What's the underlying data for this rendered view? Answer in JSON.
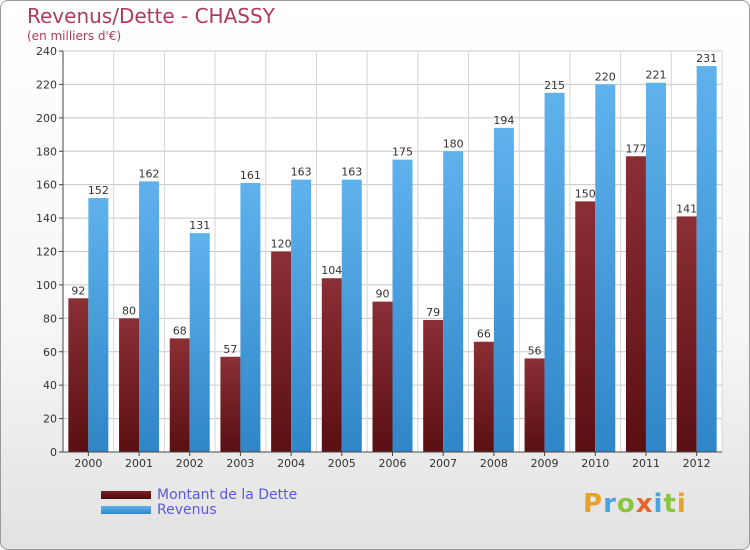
{
  "title": "Revenus/Dette - CHASSY",
  "subtitle": "(en milliers d'€)",
  "legend": {
    "debt_label": "Montant de la Dette",
    "revenue_label": "Revenus"
  },
  "logo_text": "Proxiti",
  "colors": {
    "debt": "#7a1f24",
    "revenue": "#4aa3e3",
    "title": "#b03a5c",
    "legend_text": "#5a5ae0"
  },
  "chart_data": {
    "type": "bar",
    "title": "Revenus/Dette - CHASSY",
    "subtitle": "(en milliers d'€)",
    "categories": [
      "2000",
      "2001",
      "2002",
      "2003",
      "2004",
      "2005",
      "2006",
      "2007",
      "2008",
      "2009",
      "2010",
      "2011",
      "2012"
    ],
    "series": [
      {
        "name": "Montant de la Dette",
        "values": [
          92,
          80,
          68,
          57,
          120,
          104,
          90,
          79,
          66,
          56,
          150,
          177,
          141
        ]
      },
      {
        "name": "Revenus",
        "values": [
          152,
          162,
          131,
          161,
          163,
          163,
          175,
          180,
          194,
          215,
          220,
          221,
          231
        ]
      }
    ],
    "ylim": [
      0,
      240
    ],
    "yticks": [
      0,
      20,
      40,
      60,
      80,
      100,
      120,
      140,
      160,
      180,
      200,
      220,
      240
    ],
    "grid": true,
    "legend_position": "bottom-left"
  }
}
